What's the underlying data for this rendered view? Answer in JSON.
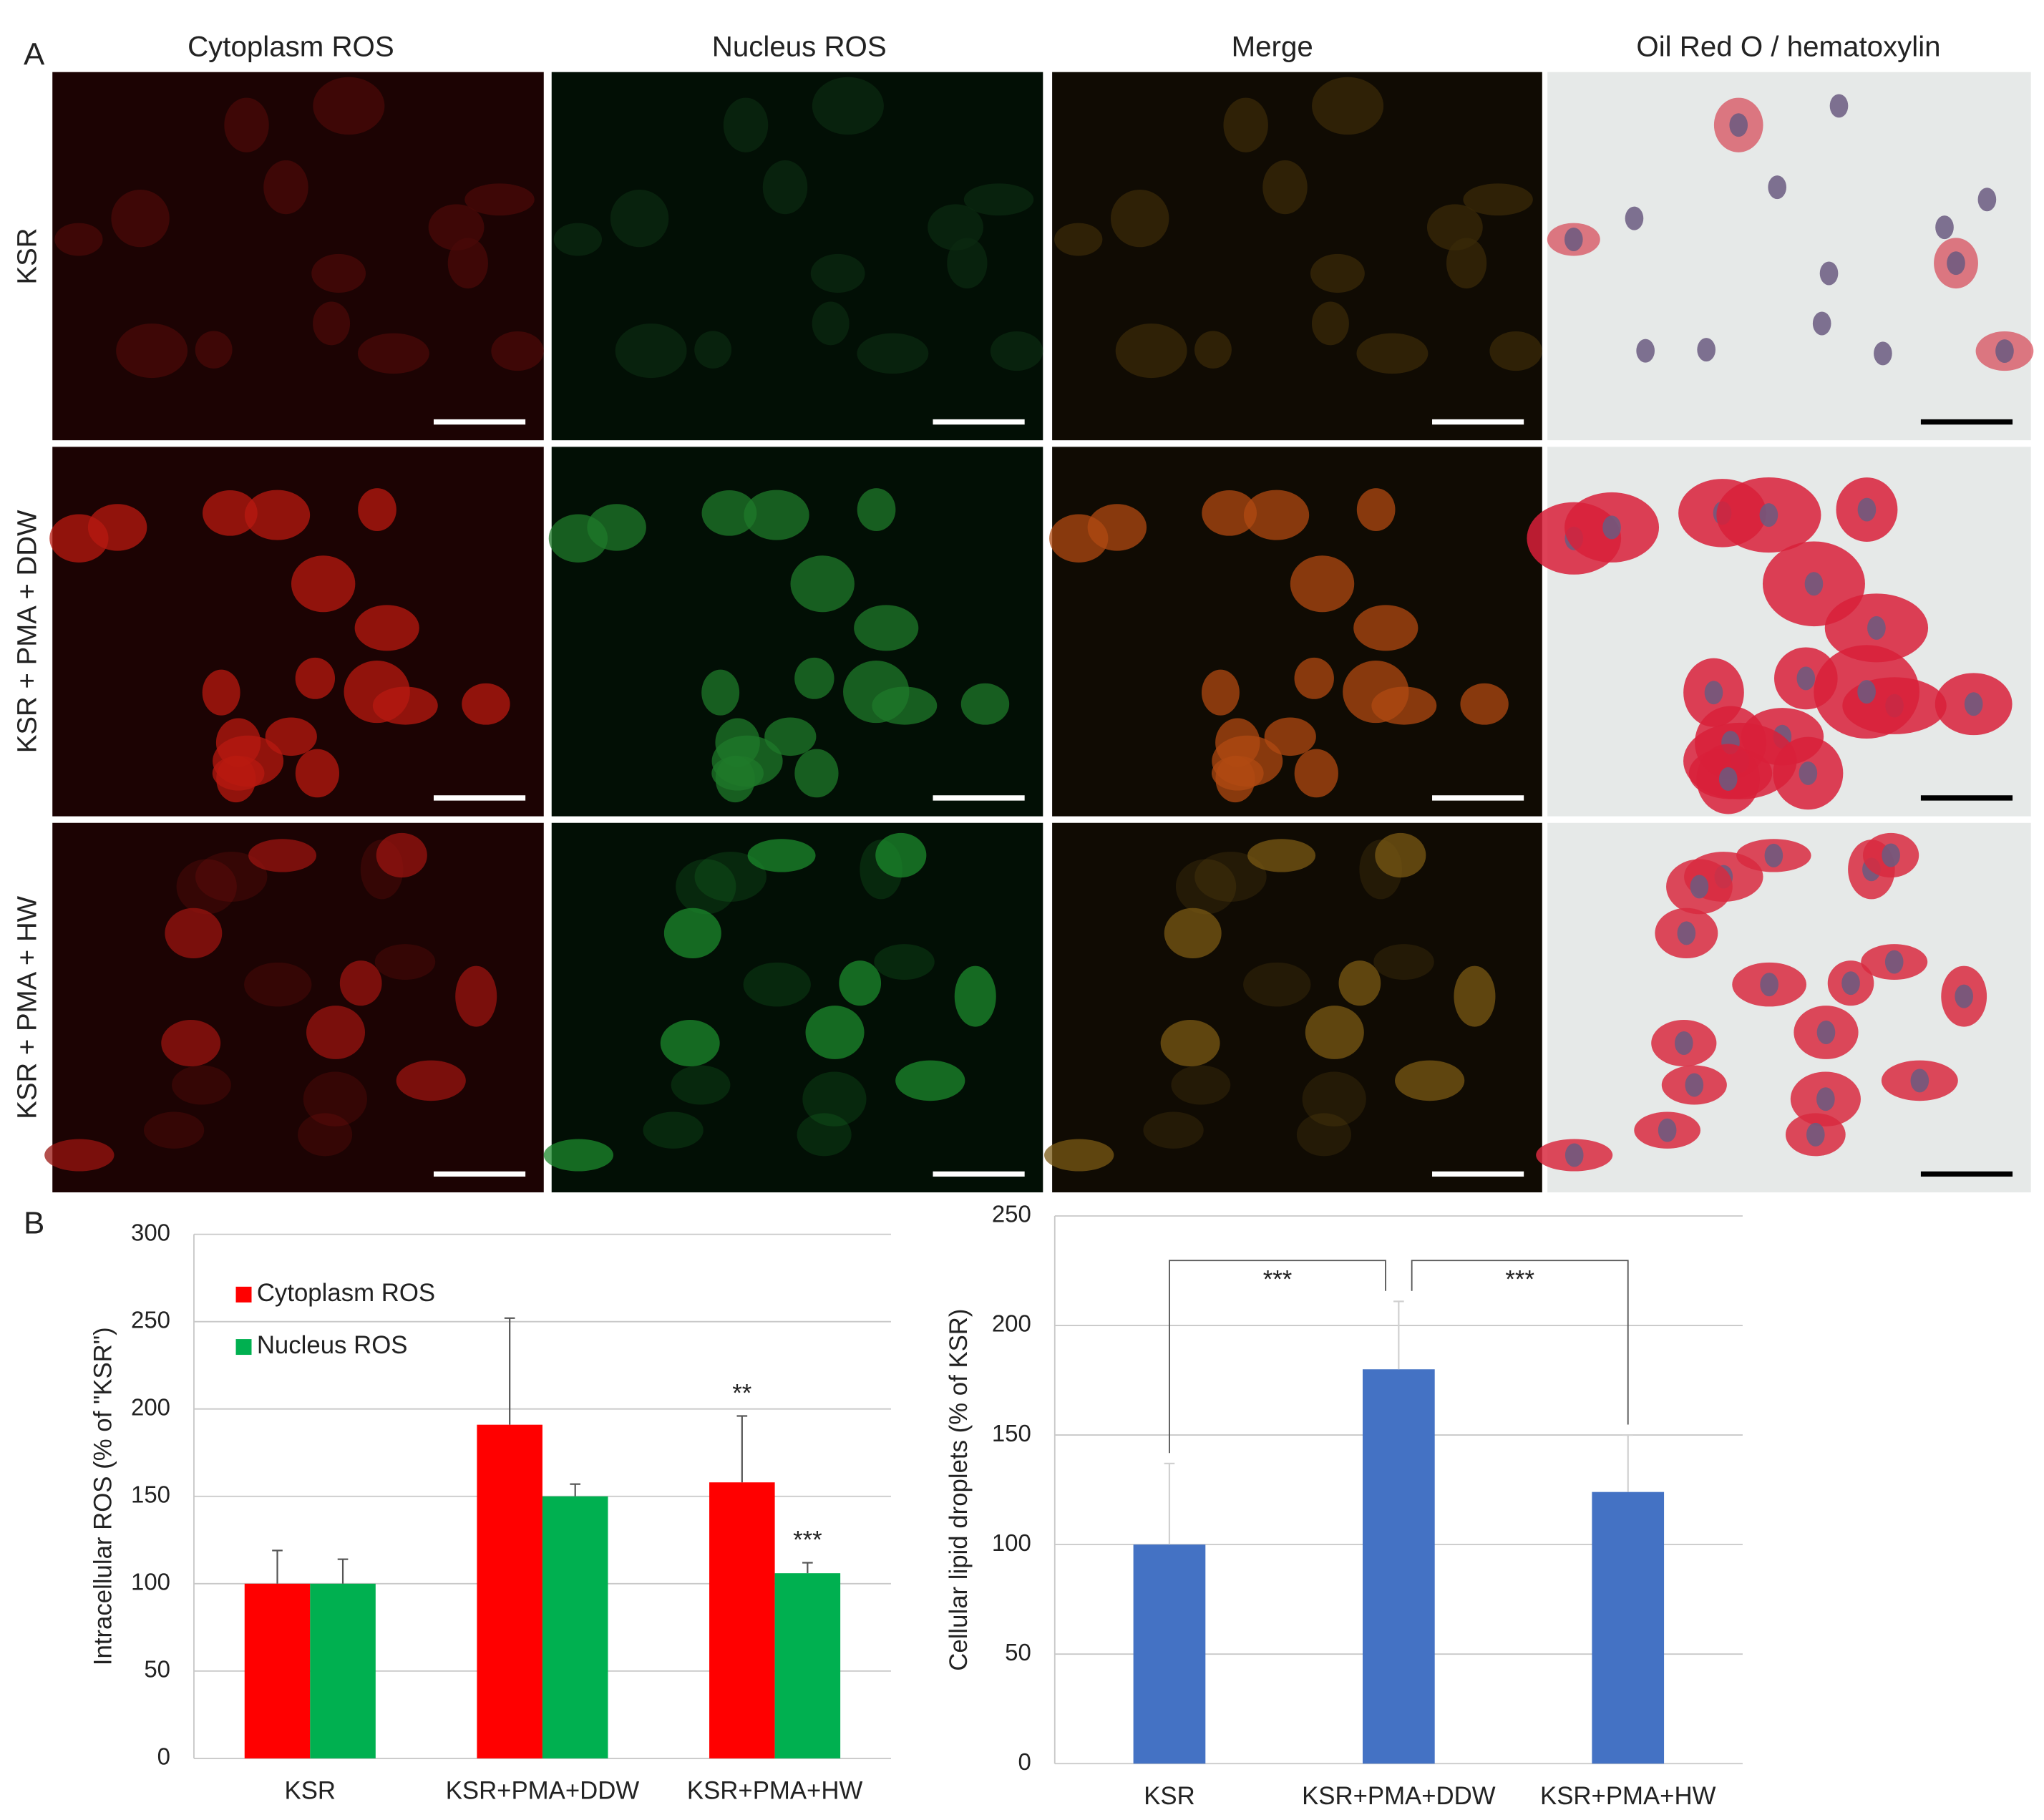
{
  "panel_labels": {
    "a": "A",
    "b": "B"
  },
  "panel_a": {
    "column_titles": [
      "Cytoplasm ROS",
      "Nucleus ROS",
      "Merge",
      "Oil Red O / hematoxylin"
    ],
    "row_labels": [
      "KSR",
      "KSR + PMA + DDW",
      "KSR + PMA + HW"
    ]
  },
  "chart_data": [
    {
      "type": "bar",
      "categories": [
        "KSR",
        "KSR+PMA+DDW",
        "KSR+PMA+HW"
      ],
      "series": [
        {
          "name": "Cytoplasm ROS",
          "color": "#ff0000",
          "values": [
            100,
            191,
            158
          ],
          "errors": [
            19,
            61,
            38
          ],
          "significance": [
            null,
            null,
            "**"
          ]
        },
        {
          "name": "Nucleus ROS",
          "color": "#00b050",
          "values": [
            100,
            150,
            106
          ],
          "errors": [
            14,
            7,
            6
          ],
          "significance": [
            null,
            null,
            "***"
          ]
        }
      ],
      "y_label": "Intracellular ROS (% of \"KSR\")",
      "ylim": [
        0,
        300
      ],
      "yticks": [
        0,
        50,
        100,
        150,
        200,
        250,
        300
      ],
      "grid": true,
      "legend": "upper left"
    },
    {
      "type": "bar",
      "categories": [
        "KSR",
        "KSR+PMA+DDW",
        "KSR+PMA+HW"
      ],
      "values": [
        100,
        180,
        124
      ],
      "errors": [
        37,
        31,
        26
      ],
      "color": "#4472c4",
      "y_label": "Cellular lipid droplets (% of KSR)",
      "ylim": [
        0,
        250
      ],
      "yticks": [
        0,
        50,
        100,
        150,
        200,
        250
      ],
      "grid": true,
      "comparisons": [
        {
          "categories": [
            "KSR",
            "KSR+PMA+DDW"
          ],
          "label": "***"
        },
        {
          "categories": [
            "KSR+PMA+DDW",
            "KSR+PMA+HW"
          ],
          "label": "***"
        }
      ]
    }
  ]
}
